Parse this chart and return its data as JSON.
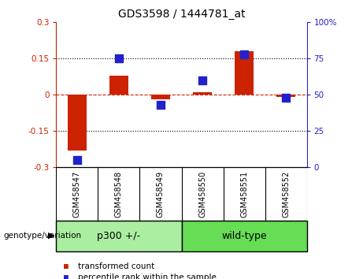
{
  "title": "GDS3598 / 1444781_at",
  "categories": [
    "GSM458547",
    "GSM458548",
    "GSM458549",
    "GSM458550",
    "GSM458551",
    "GSM458552"
  ],
  "red_values": [
    -0.23,
    0.08,
    -0.02,
    0.01,
    0.18,
    -0.01
  ],
  "blue_values": [
    5,
    75,
    43,
    60,
    78,
    48
  ],
  "ylim_left": [
    -0.3,
    0.3
  ],
  "ylim_right": [
    0,
    100
  ],
  "yticks_left": [
    -0.3,
    -0.15,
    0,
    0.15,
    0.3
  ],
  "yticks_right": [
    0,
    25,
    50,
    75,
    100
  ],
  "ytick_labels_left": [
    "-0.3",
    "-0.15",
    "0",
    "0.15",
    "0.3"
  ],
  "ytick_labels_right": [
    "0",
    "25",
    "50",
    "75",
    "100%"
  ],
  "hlines": [
    0.15,
    0,
    -0.15
  ],
  "red_color": "#CC2200",
  "blue_color": "#2222CC",
  "groups": [
    {
      "label": "p300 +/-",
      "span": [
        0,
        3
      ],
      "color": "#AAEEA0"
    },
    {
      "label": "wild-type",
      "span": [
        3,
        6
      ],
      "color": "#66DD55"
    }
  ],
  "group_label": "genotype/variation",
  "legend_items": [
    {
      "label": "transformed count",
      "color": "#CC2200"
    },
    {
      "label": "percentile rank within the sample",
      "color": "#2222CC"
    }
  ],
  "bar_width": 0.45,
  "scatter_size": 55,
  "background_color": "#FFFFFF",
  "tick_area_color": "#C8C8C8"
}
